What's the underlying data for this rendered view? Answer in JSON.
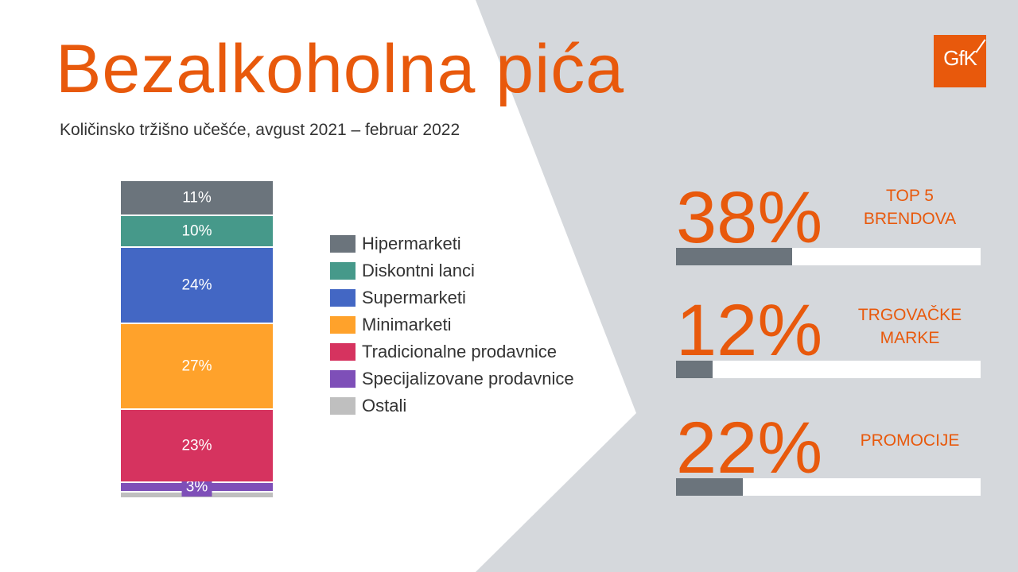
{
  "title": "Bezalkoholna pića",
  "subtitle": "Količinsko tržišno učešće, avgust 2021 – februar 2022",
  "logo": {
    "text": "GfK"
  },
  "colors": {
    "accent": "#e8590c",
    "panel": "#d5d8dc",
    "kpi_bar": "#6b747c"
  },
  "chart_data": {
    "type": "bar",
    "stacked": true,
    "unit": "%",
    "categories": [
      ""
    ],
    "series": [
      {
        "name": "Ostali",
        "values": [
          2
        ],
        "label": "",
        "color": "#bfbfbf"
      },
      {
        "name": "Specijalizovane prodavnice",
        "values": [
          3
        ],
        "label": "3%",
        "color": "#7e4fb8"
      },
      {
        "name": "Tradicionalne prodavnice",
        "values": [
          23
        ],
        "label": "23%",
        "color": "#d6335f"
      },
      {
        "name": "Minimarketi",
        "values": [
          27
        ],
        "label": "27%",
        "color": "#ffa22b"
      },
      {
        "name": "Supermarketi",
        "values": [
          24
        ],
        "label": "24%",
        "color": "#4367c4"
      },
      {
        "name": "Diskontni lanci",
        "values": [
          10
        ],
        "label": "10%",
        "color": "#46998a"
      },
      {
        "name": "Hipermarketi",
        "values": [
          11
        ],
        "label": "11%",
        "color": "#6b747c"
      }
    ],
    "legend_order": [
      "Hipermarketi",
      "Diskontni lanci",
      "Supermarketi",
      "Minimarketi",
      "Tradicionalne prodavnice",
      "Specijalizovane prodavnice",
      "Ostali"
    ],
    "legend_placement": "right"
  },
  "legend": [
    {
      "label": "Hipermarketi",
      "color": "#6b747c"
    },
    {
      "label": "Diskontni lanci",
      "color": "#46998a"
    },
    {
      "label": "Supermarketi",
      "color": "#4367c4"
    },
    {
      "label": "Minimarketi",
      "color": "#ffa22b"
    },
    {
      "label": "Tradicionalne prodavnice",
      "color": "#d6335f"
    },
    {
      "label": "Specijalizovane prodavnice",
      "color": "#7e4fb8"
    },
    {
      "label": "Ostali",
      "color": "#bfbfbf"
    }
  ],
  "kpis": [
    {
      "value_text": "38%",
      "value": 38,
      "label": "TOP 5\nBRENDOVA"
    },
    {
      "value_text": "12%",
      "value": 12,
      "label": "TRGOVAČKE\nMARKE"
    },
    {
      "value_text": "22%",
      "value": 22,
      "label": "PROMOCIJE"
    }
  ]
}
